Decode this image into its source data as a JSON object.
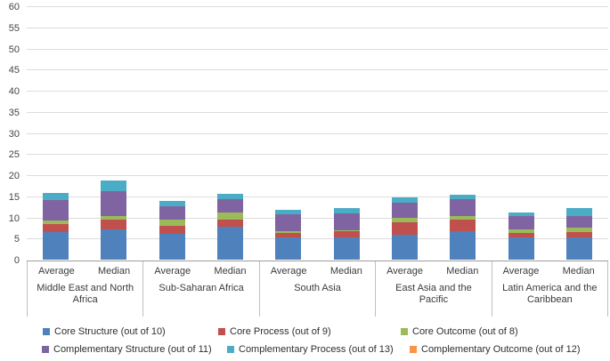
{
  "chart_data": {
    "type": "bar",
    "stacked": true,
    "title": "",
    "xlabel": "",
    "ylabel": "",
    "ylim": [
      0,
      60
    ],
    "ytick_step": 5,
    "grid": true,
    "legend_position": "bottom",
    "groups": [
      "Middle East and North Africa",
      "Sub-Saharan Africa",
      "South Asia",
      "East Asia and the Pacific",
      "Latin America and the Caribbean"
    ],
    "bar_labels": [
      "Average",
      "Median"
    ],
    "bar_order_note": "values listed per bar: group order above, Average then Median within each group",
    "series": [
      {
        "name": "Core Structure (out of 10)",
        "color": "#4F81BD",
        "values": [
          6.6,
          7.2,
          6.2,
          7.8,
          5.2,
          5.2,
          5.9,
          6.7,
          5.2,
          5.2
        ]
      },
      {
        "name": "Core Process (out of 9)",
        "color": "#C0504D",
        "values": [
          1.8,
          2.3,
          1.9,
          1.6,
          1.1,
          1.5,
          3.0,
          2.8,
          1.1,
          1.4
        ]
      },
      {
        "name": "Core Outcome (out of 8)",
        "color": "#9BBB59",
        "values": [
          0.9,
          0.9,
          1.3,
          1.7,
          0.5,
          0.3,
          1.1,
          0.8,
          0.9,
          0.9
        ]
      },
      {
        "name": "Complementary Structure (out of 11)",
        "color": "#8064A2",
        "values": [
          4.9,
          5.8,
          3.3,
          3.3,
          4.0,
          4.0,
          3.4,
          4.0,
          3.1,
          2.8
        ]
      },
      {
        "name": "Complementary Process (out of 13)",
        "color": "#4BACC6",
        "values": [
          1.5,
          2.5,
          1.1,
          1.1,
          1.1,
          1.3,
          1.3,
          1.1,
          0.9,
          1.9
        ]
      },
      {
        "name": "Complementary Outcome (out of 12)",
        "color": "#F79646",
        "values": [
          0,
          0,
          0,
          0,
          0,
          0,
          0,
          0,
          0,
          0
        ]
      }
    ],
    "bar_totals": [
      15.7,
      18.7,
      13.8,
      15.5,
      11.9,
      12.3,
      14.7,
      15.4,
      11.2,
      12.2
    ],
    "yticks": [
      0,
      5,
      10,
      15,
      20,
      25,
      30,
      35,
      40,
      45,
      50,
      55,
      60
    ]
  }
}
